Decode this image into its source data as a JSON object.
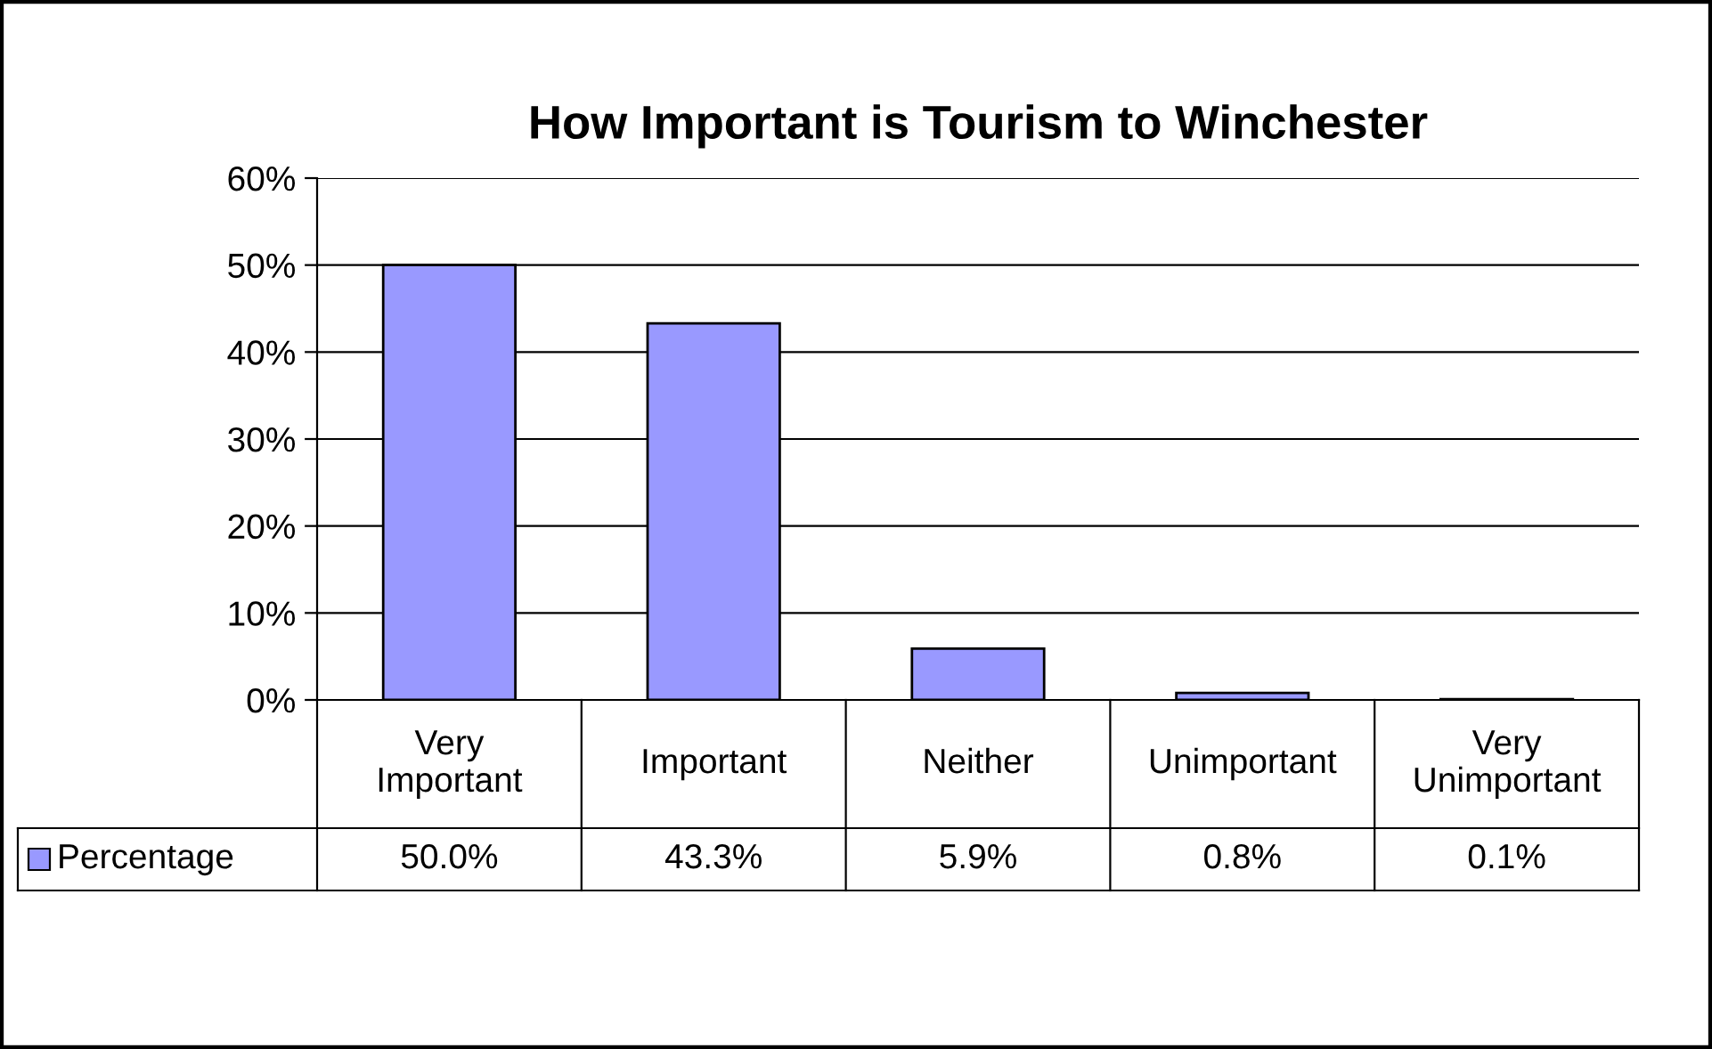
{
  "chart_data": {
    "type": "bar",
    "title": "How Important is Tourism to Winchester",
    "categories": [
      "Very\nImportant",
      "Important",
      "Neither",
      "Unimportant",
      "Very\nUnimportant"
    ],
    "series": [
      {
        "name": "Percentage",
        "color": "#9999ff",
        "values": [
          50.0,
          43.3,
          5.9,
          0.8,
          0.1
        ],
        "value_labels": [
          "50.0%",
          "43.3%",
          "5.9%",
          "0.8%",
          "0.1%"
        ]
      }
    ],
    "ylim": [
      0,
      60
    ],
    "yticks": [
      {
        "value": 0,
        "label": "0%"
      },
      {
        "value": 10,
        "label": "10%"
      },
      {
        "value": 20,
        "label": "20%"
      },
      {
        "value": 30,
        "label": "30%"
      },
      {
        "value": 40,
        "label": "40%"
      },
      {
        "value": 50,
        "label": "50%"
      },
      {
        "value": 60,
        "label": "60%"
      }
    ],
    "grid": "y"
  }
}
